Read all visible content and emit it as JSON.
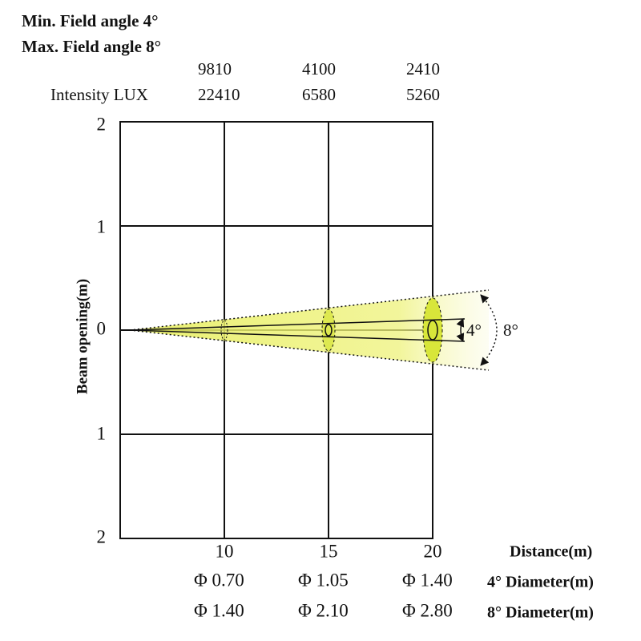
{
  "header": {
    "min_angle": "Min. Field angle 4°",
    "max_angle": "Max. Field angle 8°"
  },
  "intensity": {
    "label": "Intensity LUX",
    "rows": [
      [
        "9810",
        "4100",
        "2410"
      ],
      [
        "22410",
        "6580",
        "5260"
      ]
    ]
  },
  "y_axis": {
    "label": "Beam opening(m)",
    "ticks": [
      "2",
      "1",
      "0",
      "1",
      "2"
    ]
  },
  "x_axis": {
    "label": "Distance(m)",
    "ticks": [
      "10",
      "15",
      "20"
    ]
  },
  "diameters": [
    {
      "label": "4° Diameter(m)",
      "values": [
        "Φ 0.70",
        "Φ 1.05",
        "Φ 1.40"
      ]
    },
    {
      "label": "8° Diameter(m)",
      "values": [
        "Φ 1.40",
        "Φ 2.10",
        "Φ 2.80"
      ]
    }
  ],
  "annotations": {
    "inner_angle": "4°",
    "outer_angle": "8°"
  }
}
